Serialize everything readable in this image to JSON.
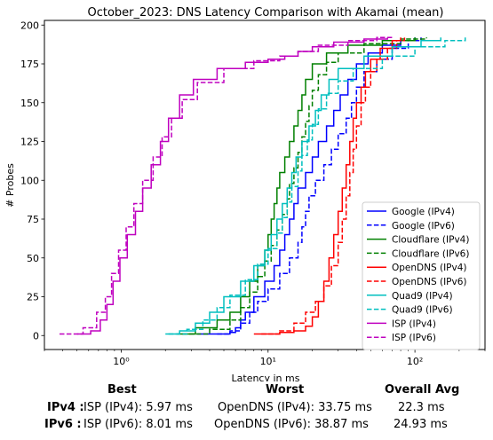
{
  "chart_data": {
    "type": "line",
    "title": "October_2023: DNS Latency Comparison with Akamai (mean)",
    "xlabel": "Latency in ms",
    "ylabel": "# Probes",
    "xscale": "log",
    "xlim": [
      0.3,
      300
    ],
    "ylim": [
      -9,
      203
    ],
    "xticks": [
      1,
      10,
      100
    ],
    "xtick_labels": [
      "10⁰",
      "10¹",
      "10²"
    ],
    "yticks": [
      0,
      25,
      50,
      75,
      100,
      125,
      150,
      175,
      200
    ],
    "grid": false,
    "legend_position": "lower right",
    "series": [
      {
        "name": "Google (IPv4)",
        "color": "#0000ff",
        "dash": "solid",
        "points": [
          [
            3.3,
            1
          ],
          [
            4.5,
            1
          ],
          [
            5.5,
            2
          ],
          [
            6.0,
            5
          ],
          [
            6.5,
            10
          ],
          [
            7.0,
            15
          ],
          [
            8.0,
            25
          ],
          [
            9.5,
            35
          ],
          [
            11,
            45
          ],
          [
            12,
            55
          ],
          [
            13,
            65
          ],
          [
            14,
            75
          ],
          [
            15,
            85
          ],
          [
            16,
            95
          ],
          [
            18,
            105
          ],
          [
            20,
            115
          ],
          [
            22,
            125
          ],
          [
            25,
            135
          ],
          [
            28,
            145
          ],
          [
            31,
            155
          ],
          [
            35,
            165
          ],
          [
            40,
            175
          ],
          [
            48,
            182
          ],
          [
            60,
            187
          ],
          [
            80,
            190
          ],
          [
            100,
            192
          ]
        ]
      },
      {
        "name": "Google (IPv6)",
        "color": "#0000ff",
        "dash": "dashed",
        "points": [
          [
            4.5,
            1
          ],
          [
            5.5,
            3
          ],
          [
            6.5,
            8
          ],
          [
            7.5,
            15
          ],
          [
            8.5,
            22
          ],
          [
            10,
            30
          ],
          [
            12,
            40
          ],
          [
            14,
            50
          ],
          [
            16,
            60
          ],
          [
            17,
            70
          ],
          [
            18,
            80
          ],
          [
            19,
            90
          ],
          [
            21,
            100
          ],
          [
            24,
            110
          ],
          [
            27,
            120
          ],
          [
            30,
            130
          ],
          [
            34,
            140
          ],
          [
            37,
            150
          ],
          [
            40,
            160
          ],
          [
            45,
            170
          ],
          [
            55,
            178
          ],
          [
            70,
            185
          ],
          [
            90,
            190
          ],
          [
            110,
            192
          ]
        ]
      },
      {
        "name": "Cloudflare (IPv4)",
        "color": "#008000",
        "dash": "solid",
        "points": [
          [
            2.4,
            1
          ],
          [
            3.2,
            5
          ],
          [
            4.5,
            10
          ],
          [
            5.5,
            15
          ],
          [
            6.5,
            25
          ],
          [
            7.5,
            35
          ],
          [
            8.5,
            45
          ],
          [
            9.5,
            55
          ],
          [
            10,
            65
          ],
          [
            10.5,
            75
          ],
          [
            11,
            85
          ],
          [
            11.5,
            95
          ],
          [
            12,
            105
          ],
          [
            13,
            115
          ],
          [
            14,
            125
          ],
          [
            15,
            135
          ],
          [
            16,
            145
          ],
          [
            17,
            155
          ],
          [
            18,
            165
          ],
          [
            20,
            175
          ],
          [
            25,
            182
          ],
          [
            35,
            187
          ],
          [
            60,
            190
          ],
          [
            100,
            192
          ]
        ]
      },
      {
        "name": "Cloudflare (IPv6)",
        "color": "#008000",
        "dash": "dashed",
        "points": [
          [
            2.6,
            1
          ],
          [
            4,
            4
          ],
          [
            5.5,
            10
          ],
          [
            6.5,
            18
          ],
          [
            7.5,
            28
          ],
          [
            8.5,
            38
          ],
          [
            9.5,
            48
          ],
          [
            10.5,
            58
          ],
          [
            11.5,
            68
          ],
          [
            12.5,
            78
          ],
          [
            13.5,
            88
          ],
          [
            14,
            98
          ],
          [
            15,
            108
          ],
          [
            16,
            118
          ],
          [
            17,
            128
          ],
          [
            18,
            138
          ],
          [
            19,
            148
          ],
          [
            20,
            158
          ],
          [
            22,
            168
          ],
          [
            25,
            176
          ],
          [
            30,
            182
          ],
          [
            45,
            188
          ],
          [
            80,
            191
          ],
          [
            120,
            192
          ]
        ]
      },
      {
        "name": "OpenDNS (IPv4)",
        "color": "#ff0000",
        "dash": "solid",
        "points": [
          [
            8,
            1
          ],
          [
            12,
            2
          ],
          [
            15,
            3
          ],
          [
            18,
            6
          ],
          [
            20,
            12
          ],
          [
            22,
            22
          ],
          [
            24,
            35
          ],
          [
            26,
            50
          ],
          [
            28,
            65
          ],
          [
            30,
            80
          ],
          [
            32,
            95
          ],
          [
            34,
            110
          ],
          [
            36,
            125
          ],
          [
            38,
            140
          ],
          [
            40,
            150
          ],
          [
            43,
            160
          ],
          [
            46,
            170
          ],
          [
            50,
            178
          ],
          [
            58,
            185
          ],
          [
            70,
            190
          ],
          [
            80,
            192
          ]
        ]
      },
      {
        "name": "OpenDNS (IPv6)",
        "color": "#ff0000",
        "dash": "dashed",
        "points": [
          [
            9,
            1
          ],
          [
            12,
            3
          ],
          [
            15,
            8
          ],
          [
            18,
            15
          ],
          [
            21,
            22
          ],
          [
            24,
            32
          ],
          [
            27,
            45
          ],
          [
            30,
            60
          ],
          [
            32,
            75
          ],
          [
            34,
            90
          ],
          [
            36,
            105
          ],
          [
            38,
            120
          ],
          [
            40,
            135
          ],
          [
            43,
            150
          ],
          [
            46,
            160
          ],
          [
            50,
            170
          ],
          [
            55,
            178
          ],
          [
            65,
            185
          ],
          [
            75,
            190
          ],
          [
            85,
            192
          ]
        ]
      },
      {
        "name": "Quad9 (IPv4)",
        "color": "#00bfbf",
        "dash": "solid",
        "points": [
          [
            2.0,
            1
          ],
          [
            2.5,
            3
          ],
          [
            3.2,
            8
          ],
          [
            4,
            15
          ],
          [
            5,
            25
          ],
          [
            6.5,
            35
          ],
          [
            8,
            45
          ],
          [
            9.5,
            55
          ],
          [
            10.5,
            65
          ],
          [
            11.5,
            75
          ],
          [
            12.5,
            85
          ],
          [
            13.5,
            95
          ],
          [
            14.5,
            105
          ],
          [
            15.5,
            115
          ],
          [
            17,
            125
          ],
          [
            19,
            135
          ],
          [
            21,
            145
          ],
          [
            23,
            155
          ],
          [
            26,
            165
          ],
          [
            30,
            172
          ],
          [
            45,
            180
          ],
          [
            70,
            186
          ],
          [
            110,
            190
          ],
          [
            150,
            192
          ]
        ]
      },
      {
        "name": "Quad9 (IPv6)",
        "color": "#00bfbf",
        "dash": "dashed",
        "points": [
          [
            2.1,
            1
          ],
          [
            2.8,
            4
          ],
          [
            3.6,
            10
          ],
          [
            4.5,
            18
          ],
          [
            5.5,
            26
          ],
          [
            7,
            36
          ],
          [
            8.5,
            46
          ],
          [
            10,
            56
          ],
          [
            11.5,
            66
          ],
          [
            12.5,
            76
          ],
          [
            13.5,
            86
          ],
          [
            14.5,
            96
          ],
          [
            16,
            106
          ],
          [
            17,
            116
          ],
          [
            18.5,
            126
          ],
          [
            20,
            136
          ],
          [
            22,
            146
          ],
          [
            25,
            156
          ],
          [
            30,
            164
          ],
          [
            38,
            172
          ],
          [
            60,
            180
          ],
          [
            100,
            186
          ],
          [
            160,
            190
          ],
          [
            220,
            192
          ]
        ]
      },
      {
        "name": "ISP (IPv4)",
        "color": "#bf00bf",
        "dash": "solid",
        "points": [
          [
            0.5,
            1
          ],
          [
            0.62,
            3
          ],
          [
            0.72,
            10
          ],
          [
            0.8,
            20
          ],
          [
            0.88,
            35
          ],
          [
            0.98,
            50
          ],
          [
            1.1,
            65
          ],
          [
            1.25,
            80
          ],
          [
            1.4,
            95
          ],
          [
            1.6,
            110
          ],
          [
            1.85,
            125
          ],
          [
            2.1,
            140
          ],
          [
            2.5,
            155
          ],
          [
            3.1,
            165
          ],
          [
            4.5,
            172
          ],
          [
            7,
            176
          ],
          [
            10,
            178
          ],
          [
            13,
            180
          ],
          [
            16,
            183
          ],
          [
            20,
            186
          ],
          [
            28,
            189
          ],
          [
            45,
            191
          ],
          [
            65,
            192
          ]
        ]
      },
      {
        "name": "ISP (IPv6)",
        "color": "#bf00bf",
        "dash": "dashed",
        "points": [
          [
            0.38,
            1
          ],
          [
            0.55,
            5
          ],
          [
            0.68,
            15
          ],
          [
            0.78,
            25
          ],
          [
            0.86,
            40
          ],
          [
            0.96,
            55
          ],
          [
            1.08,
            70
          ],
          [
            1.22,
            85
          ],
          [
            1.4,
            100
          ],
          [
            1.65,
            115
          ],
          [
            1.9,
            128
          ],
          [
            2.2,
            140
          ],
          [
            2.6,
            152
          ],
          [
            3.3,
            163
          ],
          [
            5,
            172
          ],
          [
            8,
            177
          ],
          [
            12,
            180
          ],
          [
            16,
            183
          ],
          [
            22,
            187
          ],
          [
            35,
            190
          ],
          [
            55,
            192
          ],
          [
            70,
            193
          ]
        ]
      }
    ]
  },
  "stats": {
    "headers": {
      "best": "Best",
      "worst": "Worst",
      "avg": "Overall Avg"
    },
    "rows": [
      {
        "label": "IPv4 :",
        "best": "ISP (IPv4): 5.97 ms",
        "worst": "OpenDNS (IPv4): 33.75 ms",
        "avg": "22.3 ms"
      },
      {
        "label": "IPv6 :",
        "best": "ISP (IPv6): 8.01 ms",
        "worst": "OpenDNS (IPv6): 38.87 ms",
        "avg": "24.93 ms"
      }
    ]
  }
}
